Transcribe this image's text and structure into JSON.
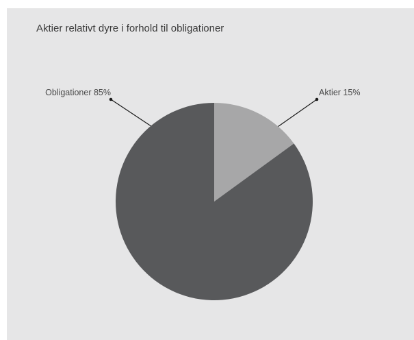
{
  "chart_data": {
    "type": "pie",
    "title": "Aktier relativt dyre i forhold til obligationer",
    "slices": [
      {
        "label": "Aktier 15%",
        "value": 15,
        "color": "#a7a7a8"
      },
      {
        "label": "Obligationer 85%",
        "value": 85,
        "color": "#58595b"
      }
    ],
    "start_angle_deg": 0,
    "direction": "clockwise",
    "leader_line_color": "#1a1a1a"
  }
}
